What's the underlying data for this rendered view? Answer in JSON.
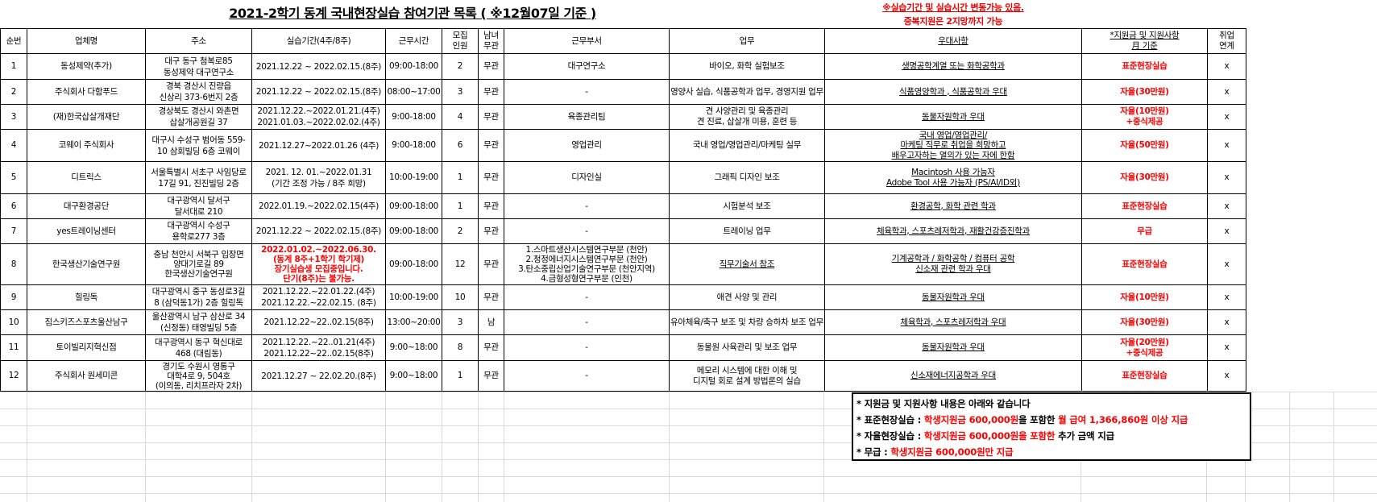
{
  "title": "2021-2학기 동계 국내현장실습 참여기관 목록 ( ※12월07일 기준 )",
  "notice": [
    "※실습기간 및 실습시간 변동가능 있음.",
    "중복지원은 2지망까지 가능"
  ],
  "headers": [
    "순번",
    "업체명",
    "주소",
    "실습기간(4주/8주)",
    "근무시간",
    [
      "모집",
      "인원"
    ],
    [
      "남녀",
      "무관"
    ],
    "근무부서",
    "업무",
    "우대사항",
    [
      "*지원금 및 지원사항",
      "月 기준"
    ],
    [
      "취업",
      "연계"
    ]
  ],
  "colors": {
    "accent_red": "#ff0000",
    "border": "#000000"
  },
  "rows": [
    {
      "no": [
        "1"
      ],
      "name": [
        "동성제약(추가)"
      ],
      "addr": [
        "대구 동구 첨복로85",
        "동성제약 대구연구소"
      ],
      "period": [
        "2021.12.22 ~ 2022.02.15.(8주)"
      ],
      "hours": [
        "09:00-18:00"
      ],
      "count": [
        "2"
      ],
      "gender": [
        "무관"
      ],
      "dept": [
        "대구연구소"
      ],
      "work": [
        "바이오, 화학 실험보조"
      ],
      "pref": [
        "생명공학계열 또는 화학공학과"
      ],
      "support": [
        "표준현장실습"
      ],
      "emp": [
        "x"
      ]
    },
    {
      "no": [
        "2"
      ],
      "name": [
        "주식회사 다함푸드"
      ],
      "addr": [
        "경북 경산시 진량읍",
        "신상리 373-6번지 2층"
      ],
      "period": [
        "2021.12.22 ~ 2022.02.15.(8주)"
      ],
      "hours": [
        "08:00~17:00"
      ],
      "count": [
        "3"
      ],
      "gender": [
        "무관"
      ],
      "dept": [
        "-"
      ],
      "work": [
        "영양사 실습, 식품공학과 업무, 경영지원 업무"
      ],
      "pref": [
        "식품영양학과 , 식품공학과 우대"
      ],
      "support": [
        "자율(30만원)"
      ],
      "emp": [
        "x"
      ]
    },
    {
      "no": [
        "3"
      ],
      "name": [
        "(재)한국삽살개재단"
      ],
      "addr": [
        "경상북도 경산시 와촌면",
        "삽살개공원길 37"
      ],
      "period": [
        "2021.12.22.~2022.01.21.(4주)",
        "2021.01.03.~2022.02.02.(4주)"
      ],
      "hours": [
        "9:00-18:00"
      ],
      "count": [
        "4"
      ],
      "gender": [
        "무관"
      ],
      "dept": [
        "육종관리팀"
      ],
      "work": [
        "견 사양관리 및 육종관리",
        "견 진료, 삽살개 미용, 훈련 등"
      ],
      "pref": [
        "동물자원학과 우대"
      ],
      "support": [
        "자율(10만원)",
        "+중식제공"
      ],
      "emp": [
        "x"
      ]
    },
    {
      "no": [
        "4"
      ],
      "name": [
        "코웨이 주식회사"
      ],
      "addr": [
        "대구시 수성구 범어동 559-",
        "10 삼회빌딩 6층 코웨이"
      ],
      "period": [
        "2021.12.27~2022.01.26 (4주)"
      ],
      "hours": [
        "9:00-18:00"
      ],
      "count": [
        "6"
      ],
      "gender": [
        "무관"
      ],
      "dept": [
        "영업관리"
      ],
      "work": [
        "국내 영업/영업관리/마케팅 실무"
      ],
      "pref": [
        "국내 영업/영업관리/",
        "마케팅 직무로 취업을 희망하고",
        "배우고자하는 열의가 있는 자에 한함"
      ],
      "support": [
        "자율(50만원)"
      ],
      "emp": [
        "x"
      ]
    },
    {
      "no": [
        "5"
      ],
      "name": [
        "디트릭스"
      ],
      "addr": [
        "서울특별시 서초구 사임당로",
        "17길 91, 진진빌딩 2층"
      ],
      "period": [
        "2021. 12. 01.~2022.01.31",
        "(기간 조정 가능 / 8주 희망)"
      ],
      "hours": [
        "10:00-19:00"
      ],
      "count": [
        "1"
      ],
      "gender": [
        "무관"
      ],
      "dept": [
        "디자인실"
      ],
      "work": [
        "그래픽 디자인 보조"
      ],
      "pref": [
        "Macintosh 사용 가능자",
        "Adobe Tool 사용 가능자 (PS/AI/ID외)"
      ],
      "support": [
        "자율(30만원)"
      ],
      "emp": [
        "x"
      ]
    },
    {
      "no": [
        "6"
      ],
      "name": [
        "대구환경공단"
      ],
      "addr": [
        "대구광역시 달서구",
        "달서대로 210"
      ],
      "period": [
        "2022.01.19.~2022.02.15(4주)"
      ],
      "hours": [
        "09:00-18:00"
      ],
      "count": [
        "1"
      ],
      "gender": [
        "무관"
      ],
      "dept": [
        "-"
      ],
      "work": [
        "시험분석 보조"
      ],
      "pref": [
        "환경공학, 화학 관련 학과"
      ],
      "support": [
        "표준현장실습"
      ],
      "emp": [
        "x"
      ]
    },
    {
      "no": [
        "7"
      ],
      "name": [
        "yes트레이닝센터"
      ],
      "addr": [
        "대구광역시 수성구",
        "용학로277 3층"
      ],
      "period": [
        "2021.12.22 ~ 2022.02.15.(8주)"
      ],
      "hours": [
        "09:00-18:00"
      ],
      "count": [
        "2"
      ],
      "gender": [
        "무관"
      ],
      "dept": [
        "-"
      ],
      "work": [
        "트레이닝 업무"
      ],
      "pref": [
        "체육학과, 스포츠레저학과, 재활건강증진학과"
      ],
      "support": [
        "무급"
      ],
      "emp": [
        "x"
      ]
    },
    {
      "no": [
        "8"
      ],
      "name": [
        "한국생산기술연구원"
      ],
      "addr": [
        "충남 천안시 서북구 입장면",
        "양대기로길 89",
        "한국생산기술연구원"
      ],
      "period": [
        "2022.01.02.~2022.06.30.",
        "(동계 8주+1학기 학기제)",
        "장기실습생 모집중입니다.",
        "단기(8주)는 불가능."
      ],
      "hours": [
        "09:00-18:00"
      ],
      "count": [
        "12"
      ],
      "gender": [
        "무관"
      ],
      "dept": [
        "1.스마트생산시스템연구부문 (천안)",
        "2.청정에너지시스템연구부문 (천안)",
        "3.탄소중립산업기술연구부문 (천안지역)",
        "4.금형성형연구부문 (인천)"
      ],
      "work": [
        "직무기술서 참조"
      ],
      "pref": [
        "기계공학과 / 화학공학 / 컴퓨터 공학",
        "신소재 관련 학과 우대"
      ],
      "support": [
        "표준현장실습"
      ],
      "emp": [
        "x"
      ]
    },
    {
      "no": [
        "9"
      ],
      "name": [
        "힐링독"
      ],
      "addr": [
        "대구광역시 중구 동성로3길",
        "8 (삼덕동1가) 2층 힐링독"
      ],
      "period": [
        "2021.12.22.~22.01.22.(4주)",
        "2021.12.22.~22.02.15. (8주)"
      ],
      "hours": [
        "10:00-19:00"
      ],
      "count": [
        "10"
      ],
      "gender": [
        "무관"
      ],
      "dept": [
        "-"
      ],
      "work": [
        "애견 사양 및 관리"
      ],
      "pref": [
        "동물자원학과 우대"
      ],
      "support": [
        "자율(10만원)"
      ],
      "emp": [
        "x"
      ]
    },
    {
      "no": [
        "10"
      ],
      "name": [
        "짐스키즈스포츠울산남구"
      ],
      "addr": [
        "울산광역시 남구 삼산로 34",
        "(신정동) 태영빌딩 5층"
      ],
      "period": [
        "2021.12.22~22..02.15(8주)"
      ],
      "hours": [
        "13:00~20:00"
      ],
      "count": [
        "3"
      ],
      "gender": [
        "남"
      ],
      "dept": [
        "-"
      ],
      "work": [
        "유아체육/축구 보조 및 차량 승하차 보조 업무"
      ],
      "pref": [
        "체육학과, 스포츠레저학과 우대"
      ],
      "support": [
        "자율(30만원)"
      ],
      "emp": [
        "x"
      ]
    },
    {
      "no": [
        "11"
      ],
      "name": [
        "토이빌리지혁신점"
      ],
      "addr": [
        "대구광역시 동구 혁신대로",
        "468 (대림동)"
      ],
      "period": [
        "2021.12.22.~22..01.21(4주)",
        "2021.12.22~22..02.15(8주)"
      ],
      "hours": [
        "9:00~18:00"
      ],
      "count": [
        "8"
      ],
      "gender": [
        "무관"
      ],
      "dept": [
        "-"
      ],
      "work": [
        "동물원 사육관리 및 보조 업무"
      ],
      "pref": [
        "동물자원학과 우대"
      ],
      "support": [
        "자율(20만원)",
        "+중식제공"
      ],
      "emp": [
        "x"
      ]
    },
    {
      "no": [
        "12"
      ],
      "name": [
        "주식회사 원세미콘"
      ],
      "addr": [
        "경기도 수원시 영통구",
        "대학4로 9, 504호",
        "(이의동, 리치프라자 2차)"
      ],
      "period": [
        "2021.12.27 ~ 22.02.20.(8주)"
      ],
      "hours": [
        "9:00~18:00"
      ],
      "count": [
        "1"
      ],
      "gender": [
        "무관"
      ],
      "dept": [
        "-"
      ],
      "work": [
        "메모리 시스템에 대한 이해 및",
        "디지털 회로 설계 방법론의 실습"
      ],
      "pref": [
        "신소재에너지공학과 우대"
      ],
      "support": [
        "표준현장실습"
      ],
      "emp": [
        "x"
      ]
    }
  ],
  "support_note": {
    "heading": "* 지원금 및 지원사항 내용은 아래와 같습니다",
    "lines": [
      {
        "label": "* 표준현장실습 : ",
        "red1": "학생지원금 600,000원",
        "mid": "을 포함한 ",
        "red2": "월 급여 1,366,860원 이상 지급",
        "tail": ""
      },
      {
        "label": "* 자율현장실습 : ",
        "red1": "학생지원금 600,000원을 포함한",
        "mid": " 추가 금액 지급",
        "red2": "",
        "tail": ""
      },
      {
        "label": "* 무급 : ",
        "red1": "학생지원금 600,000원만 지급",
        "mid": "",
        "red2": "",
        "tail": ""
      }
    ]
  }
}
